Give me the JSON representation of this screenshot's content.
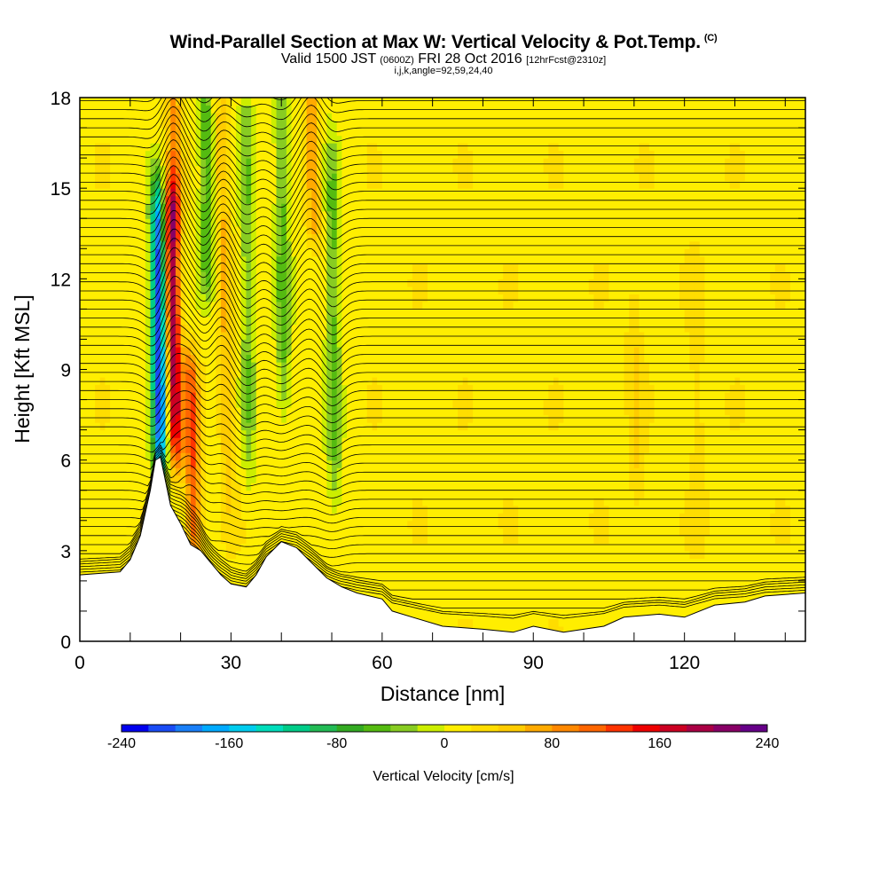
{
  "header": {
    "title": "Wind-Parallel Section at Max W: Vertical Velocity & Pot.Temp.",
    "copyright": "(C)",
    "valid_prefix": "Valid 1500 JST",
    "valid_utc": "(0600Z)",
    "valid_date": "FRI 28 Oct 2016",
    "forecast": "[12hrFcst@2310z]",
    "indices": "i,j,k,angle=92,59,24,40"
  },
  "chart_data": {
    "type": "heatmap",
    "title": "Wind-Parallel Section at Max W: Vertical Velocity & Pot.Temp.",
    "xlabel": "Distance [nm]",
    "ylabel": "Height [Kft MSL]",
    "xlim": [
      0,
      144
    ],
    "ylim": [
      0,
      18
    ],
    "x_ticks": [
      0,
      30,
      60,
      90,
      120
    ],
    "y_ticks": [
      0,
      3,
      6,
      9,
      12,
      15,
      18
    ],
    "grid": false,
    "colorbar": {
      "title": "Vertical Velocity [cm/s]",
      "range": [
        -240,
        240
      ],
      "step": 20,
      "tick_labels": [
        "-240",
        "-160",
        "-80",
        "0",
        "80",
        "160",
        "240"
      ],
      "colors": [
        "#0000ee",
        "#1a4cf5",
        "#1a7ff8",
        "#00aaff",
        "#00ccee",
        "#00ddbb",
        "#00cc88",
        "#22bb55",
        "#33aa22",
        "#55bb11",
        "#88cc22",
        "#ccee00",
        "#ffee00",
        "#ffdd00",
        "#ffcc00",
        "#ffaa00",
        "#ff8800",
        "#ff6600",
        "#ff3300",
        "#ee0000",
        "#cc0022",
        "#aa0044",
        "#880066",
        "#660088"
      ]
    },
    "terrain": [
      [
        0,
        2.2
      ],
      [
        8,
        2.3
      ],
      [
        10,
        2.7
      ],
      [
        12,
        3.5
      ],
      [
        14,
        5.0
      ],
      [
        15,
        6.0
      ],
      [
        16,
        6.1
      ],
      [
        17,
        5.3
      ],
      [
        18,
        4.5
      ],
      [
        20,
        3.9
      ],
      [
        22,
        3.2
      ],
      [
        24,
        3.0
      ],
      [
        26,
        2.6
      ],
      [
        28,
        2.2
      ],
      [
        30,
        1.9
      ],
      [
        33,
        1.8
      ],
      [
        35,
        2.2
      ],
      [
        37,
        2.8
      ],
      [
        40,
        3.3
      ],
      [
        43,
        3.1
      ],
      [
        46,
        2.6
      ],
      [
        49,
        2.1
      ],
      [
        52,
        1.8
      ],
      [
        55,
        1.6
      ],
      [
        60,
        1.4
      ],
      [
        62,
        1.0
      ],
      [
        66,
        0.8
      ],
      [
        72,
        0.5
      ],
      [
        80,
        0.4
      ],
      [
        86,
        0.3
      ],
      [
        90,
        0.5
      ],
      [
        96,
        0.3
      ],
      [
        104,
        0.5
      ],
      [
        108,
        0.8
      ],
      [
        115,
        0.9
      ],
      [
        120,
        0.8
      ],
      [
        126,
        1.2
      ],
      [
        132,
        1.3
      ],
      [
        136,
        1.5
      ],
      [
        144,
        1.6
      ]
    ],
    "velocity_features": [
      {
        "x": 15.5,
        "zmin": 6.0,
        "zmax": 14.5,
        "w": -230
      },
      {
        "x": 18.0,
        "zmin": 6.5,
        "zmax": 14.5,
        "w": 180
      },
      {
        "x": 22.0,
        "zmin": 3.2,
        "zmax": 9.0,
        "w": 110
      },
      {
        "x": 18.5,
        "zmin": 14.0,
        "zmax": 18.0,
        "w": 80
      },
      {
        "x": 25.0,
        "zmin": 12.0,
        "zmax": 18.0,
        "w": -70
      },
      {
        "x": 28.0,
        "zmin": 5.0,
        "zmax": 18.0,
        "w": 50
      },
      {
        "x": 33.0,
        "zmin": 6.0,
        "zmax": 18.0,
        "w": -50
      },
      {
        "x": 40.0,
        "zmin": 8.0,
        "zmax": 18.0,
        "w": -60
      },
      {
        "x": 46.0,
        "zmin": 14.0,
        "zmax": 18.0,
        "w": 70
      },
      {
        "x": 50.0,
        "zmin": 5.0,
        "zmax": 16.0,
        "w": -60
      },
      {
        "x": 110.0,
        "zmin": 5.0,
        "zmax": 11.0,
        "w": 30
      },
      {
        "x": 122.0,
        "zmin": 4.0,
        "zmax": 12.0,
        "w": 20
      }
    ]
  }
}
